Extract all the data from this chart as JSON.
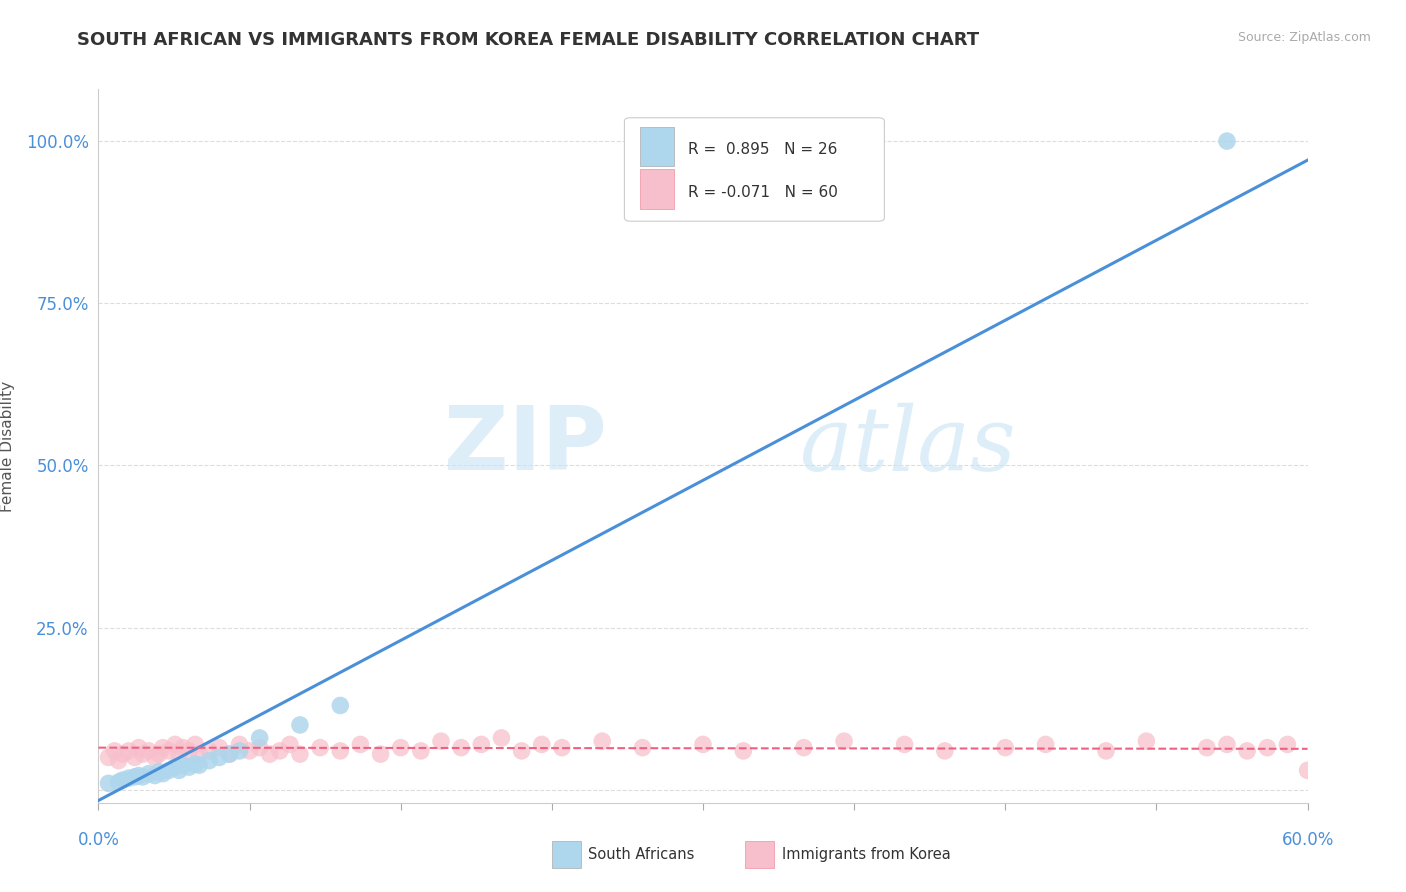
{
  "title": "SOUTH AFRICAN VS IMMIGRANTS FROM KOREA FEMALE DISABILITY CORRELATION CHART",
  "source": "Source: ZipAtlas.com",
  "ylabel": "Female Disability",
  "xmin": 0.0,
  "xmax": 0.6,
  "ymin": -0.02,
  "ymax": 1.08,
  "yticks": [
    0.0,
    0.25,
    0.5,
    0.75,
    1.0
  ],
  "ytick_labels": [
    "",
    "25.0%",
    "50.0%",
    "75.0%",
    "100.0%"
  ],
  "r_sa": 0.895,
  "n_sa": 26,
  "r_kr": -0.071,
  "n_kr": 60,
  "color_sa": "#aed6ec",
  "color_kr": "#f7bfcc",
  "line_color_sa": "#4a90d9",
  "line_color_kr": "#f06080",
  "watermark_zip": "ZIP",
  "watermark_atlas": "atlas",
  "legend_label_sa": "South Africans",
  "legend_label_kr": "Immigrants from Korea",
  "sa_x": [
    0.005,
    0.01,
    0.012,
    0.015,
    0.018,
    0.02,
    0.022,
    0.025,
    0.028,
    0.03,
    0.032,
    0.035,
    0.038,
    0.04,
    0.042,
    0.045,
    0.048,
    0.05,
    0.055,
    0.06,
    0.065,
    0.07,
    0.08,
    0.1,
    0.12,
    0.56
  ],
  "sa_y": [
    0.01,
    0.012,
    0.015,
    0.018,
    0.02,
    0.022,
    0.02,
    0.025,
    0.022,
    0.028,
    0.025,
    0.03,
    0.035,
    0.03,
    0.038,
    0.035,
    0.04,
    0.038,
    0.045,
    0.05,
    0.055,
    0.06,
    0.08,
    0.1,
    0.13,
    1.0
  ],
  "kr_x": [
    0.005,
    0.008,
    0.01,
    0.012,
    0.015,
    0.018,
    0.02,
    0.022,
    0.025,
    0.028,
    0.03,
    0.032,
    0.035,
    0.038,
    0.04,
    0.042,
    0.045,
    0.048,
    0.05,
    0.055,
    0.06,
    0.065,
    0.07,
    0.075,
    0.08,
    0.085,
    0.09,
    0.095,
    0.1,
    0.11,
    0.12,
    0.13,
    0.14,
    0.15,
    0.16,
    0.17,
    0.18,
    0.19,
    0.2,
    0.21,
    0.22,
    0.23,
    0.25,
    0.27,
    0.3,
    0.32,
    0.35,
    0.37,
    0.4,
    0.42,
    0.45,
    0.47,
    0.5,
    0.52,
    0.55,
    0.56,
    0.57,
    0.58,
    0.59,
    0.6
  ],
  "kr_y": [
    0.05,
    0.06,
    0.045,
    0.055,
    0.06,
    0.05,
    0.065,
    0.055,
    0.06,
    0.05,
    0.055,
    0.065,
    0.06,
    0.07,
    0.055,
    0.065,
    0.06,
    0.07,
    0.055,
    0.06,
    0.065,
    0.055,
    0.07,
    0.06,
    0.065,
    0.055,
    0.06,
    0.07,
    0.055,
    0.065,
    0.06,
    0.07,
    0.055,
    0.065,
    0.06,
    0.075,
    0.065,
    0.07,
    0.08,
    0.06,
    0.07,
    0.065,
    0.075,
    0.065,
    0.07,
    0.06,
    0.065,
    0.075,
    0.07,
    0.06,
    0.065,
    0.07,
    0.06,
    0.075,
    0.065,
    0.07,
    0.06,
    0.065,
    0.07,
    0.03
  ]
}
